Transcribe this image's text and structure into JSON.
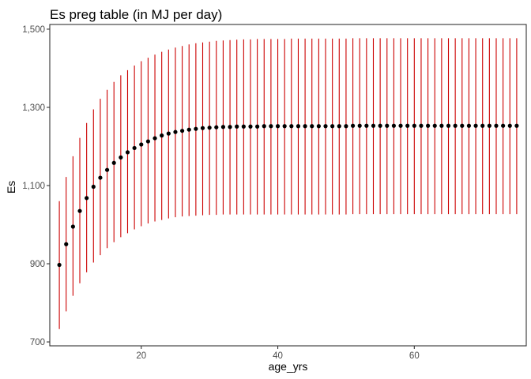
{
  "chart_data": {
    "type": "scatter",
    "title": "Es preg table  (in MJ per day)",
    "xlabel": "age_yrs",
    "ylabel": "Es",
    "xlim": [
      6.6,
      76.4
    ],
    "ylim": [
      690,
      1512
    ],
    "x_ticks": [
      20,
      40,
      60
    ],
    "x_tick_labels": [
      "20",
      "40",
      "60"
    ],
    "y_ticks": [
      700,
      900,
      1100,
      1300,
      1500
    ],
    "y_tick_labels": [
      "700",
      "900",
      "1,100",
      "1,300",
      "1,500"
    ],
    "grid": false,
    "legend": "none",
    "point_color": "#000000",
    "errorbar_color": "#cc0000",
    "series": [
      {
        "x": [
          8,
          9,
          10,
          11,
          12,
          13,
          14,
          15,
          16,
          17,
          18,
          19,
          20,
          21,
          22,
          23,
          24,
          25,
          26,
          27,
          28,
          29,
          30,
          31,
          32,
          33,
          34,
          35,
          36,
          37,
          38,
          39,
          40,
          41,
          42,
          43,
          44,
          45,
          46,
          47,
          48,
          49,
          50,
          51,
          52,
          53,
          54,
          55,
          56,
          57,
          58,
          59,
          60,
          61,
          62,
          63,
          64,
          65,
          66,
          67,
          68,
          69,
          70,
          71,
          72,
          73,
          74,
          75
        ],
        "y": [
          897,
          950,
          995,
          1035,
          1068,
          1097,
          1120,
          1140,
          1158,
          1172,
          1185,
          1196,
          1205,
          1213,
          1221,
          1228,
          1233,
          1237,
          1240,
          1243,
          1245,
          1247,
          1248,
          1249,
          1250,
          1250,
          1251,
          1251,
          1251,
          1251,
          1252,
          1252,
          1252,
          1252,
          1252,
          1252,
          1252,
          1252,
          1252,
          1252,
          1252,
          1252,
          1252,
          1253,
          1253,
          1253,
          1253,
          1253,
          1253,
          1253,
          1253,
          1253,
          1253,
          1253,
          1253,
          1253,
          1253,
          1253,
          1253,
          1253,
          1253,
          1253,
          1253,
          1253,
          1253,
          1253,
          1253,
          1253
        ],
        "ymin": [
          733,
          778,
          818,
          850,
          878,
          903,
          922,
          940,
          955,
          968,
          978,
          988,
          996,
          1003,
          1008,
          1012,
          1016,
          1019,
          1021,
          1022,
          1023,
          1024,
          1025,
          1025,
          1026,
          1026,
          1026,
          1026,
          1026,
          1026,
          1026,
          1026,
          1026,
          1026,
          1026,
          1026,
          1026,
          1026,
          1026,
          1026,
          1026,
          1026,
          1026,
          1027,
          1027,
          1027,
          1027,
          1027,
          1027,
          1027,
          1027,
          1027,
          1027,
          1027,
          1027,
          1027,
          1027,
          1027,
          1027,
          1027,
          1027,
          1027,
          1027,
          1027,
          1027,
          1027,
          1027,
          1027
        ],
        "ymax": [
          1060,
          1122,
          1175,
          1222,
          1260,
          1295,
          1322,
          1345,
          1365,
          1382,
          1395,
          1407,
          1418,
          1427,
          1435,
          1442,
          1448,
          1453,
          1457,
          1461,
          1464,
          1466,
          1468,
          1470,
          1471,
          1472,
          1473,
          1474,
          1474,
          1475,
          1475,
          1475,
          1475,
          1475,
          1476,
          1476,
          1476,
          1476,
          1476,
          1476,
          1476,
          1476,
          1476,
          1477,
          1477,
          1477,
          1477,
          1477,
          1477,
          1477,
          1477,
          1477,
          1477,
          1477,
          1477,
          1477,
          1477,
          1477,
          1477,
          1477,
          1477,
          1477,
          1477,
          1477,
          1477,
          1477,
          1477,
          1477
        ]
      }
    ]
  }
}
